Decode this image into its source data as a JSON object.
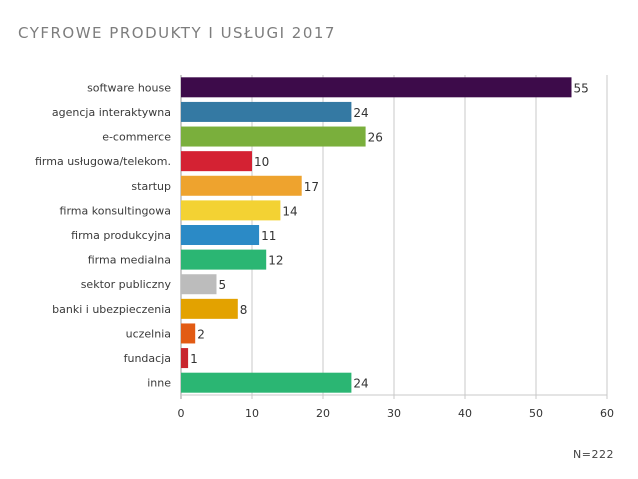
{
  "chart_data": {
    "type": "bar",
    "orientation": "horizontal",
    "title": "CYFROWE PRODUKTY I USŁUGI 2017",
    "note": "N=222",
    "categories": [
      "software house",
      "agencja interaktywna",
      "e-commerce",
      "firma usługowa/telekom.",
      "startup",
      "firma konsultingowa",
      "firma produkcyjna",
      "firma medialna",
      "sektor publiczny",
      "banki i ubezpieczenia",
      "uczelnia",
      "fundacja",
      "inne"
    ],
    "values": [
      55,
      24,
      26,
      10,
      17,
      14,
      11,
      12,
      5,
      8,
      2,
      1,
      24
    ],
    "colors": [
      "#3d0b4a",
      "#3479a3",
      "#7aaf3c",
      "#d42233",
      "#eea32e",
      "#f3d233",
      "#2b8ac6",
      "#2bb673",
      "#bcbcbc",
      "#e3a200",
      "#e25b14",
      "#c8262e",
      "#2bb673"
    ],
    "xlim": [
      0,
      60
    ],
    "xticks": [
      "0",
      "10",
      "20",
      "30",
      "40",
      "50",
      "60"
    ],
    "grid": true
  }
}
